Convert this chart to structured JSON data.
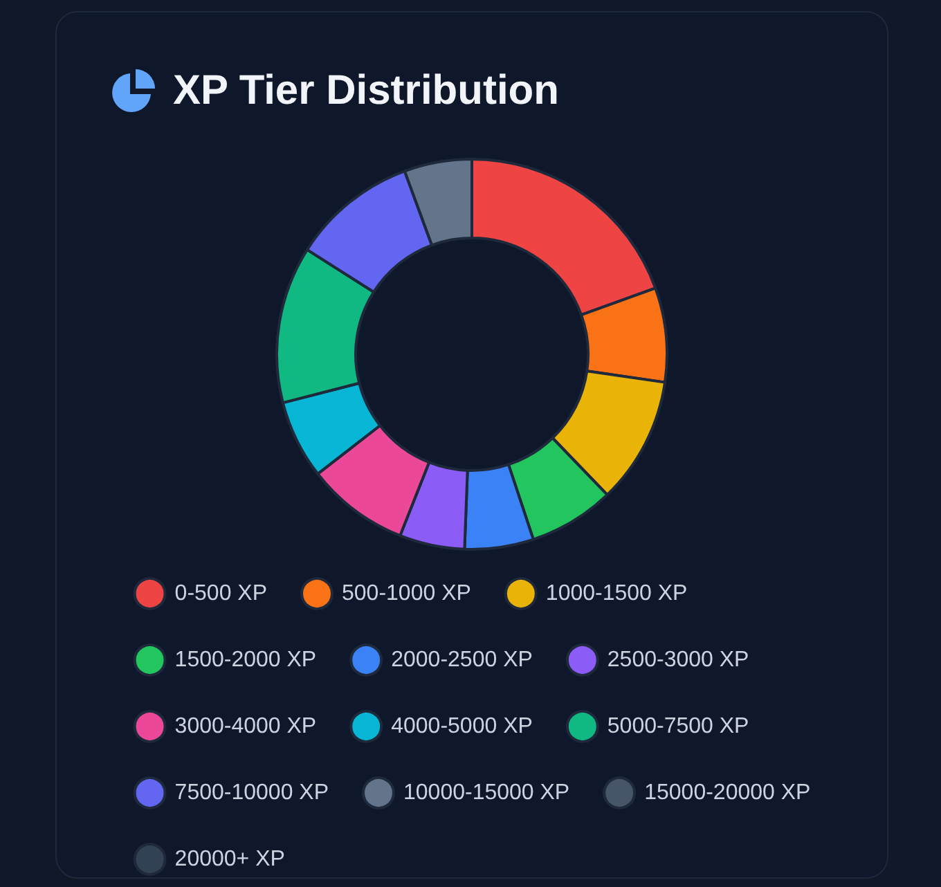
{
  "chart_data": {
    "type": "donut",
    "title": "XP Tier Distribution",
    "legend": "bottom",
    "categories": [
      "0-500 XP",
      "500-1000 XP",
      "1000-1500 XP",
      "1500-2000 XP",
      "2000-2500 XP",
      "2500-3000 XP",
      "3000-4000 XP",
      "4000-5000 XP",
      "5000-7500 XP",
      "7500-10000 XP",
      "10000-15000 XP",
      "15000-20000 XP",
      "20000+ XP"
    ],
    "values": [
      19.5,
      7.8,
      10.5,
      7.1,
      5.7,
      5.4,
      8.5,
      6.5,
      13,
      10.4,
      5.6,
      0,
      0
    ],
    "colors": [
      "#ef4444",
      "#f97316",
      "#eab308",
      "#22c55e",
      "#3b82f6",
      "#8b5cf6",
      "#ec4899",
      "#06b6d4",
      "#10b981",
      "#6366f1",
      "#64748b",
      "#475569",
      "#334155"
    ]
  }
}
